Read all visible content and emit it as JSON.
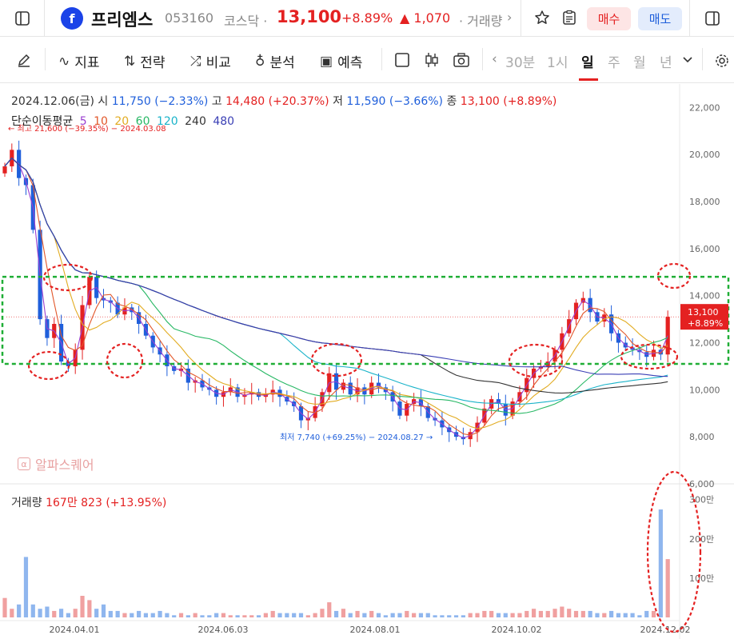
{
  "header": {
    "logo_letter": "f",
    "name": "프리엠스",
    "code": "053160",
    "market": "코스닥 ·",
    "price": "13,100",
    "pct": "+8.89%",
    "change": "▲ 1,070",
    "volume_link": "· 거래량",
    "more": "›",
    "buy": "매수",
    "sell": "매도"
  },
  "toolbar": {
    "indicator": "지표",
    "strategy": "전략",
    "compare": "비교",
    "analysis": "분석",
    "predict": "예측",
    "periods": [
      "30분",
      "1시",
      "일",
      "주",
      "월",
      "년"
    ],
    "active_period": "일"
  },
  "ohlc": {
    "date": "2024.12.06(금)",
    "open_label": "시",
    "open": "11,750 (−2.33%)",
    "high_label": "고",
    "high": "14,480 (+20.37%)",
    "low_label": "저",
    "low": "11,590 (−3.66%)",
    "close_label": "종",
    "close": "13,100 (+8.89%)"
  },
  "ma_legend": {
    "title": "단순이동평균",
    "items": [
      {
        "label": "5",
        "color": "#9b3fd1"
      },
      {
        "label": "10",
        "color": "#e2572a"
      },
      {
        "label": "20",
        "color": "#e2ac22"
      },
      {
        "label": "60",
        "color": "#28b865"
      },
      {
        "label": "120",
        "color": "#19b3c9"
      },
      {
        "label": "240",
        "color": "#333333"
      },
      {
        "label": "480",
        "color": "#3a3fb5"
      }
    ]
  },
  "annotations": {
    "max": "← 최고 21,600 (−39.35%) − 2024.03.08",
    "min": "최저 7,740 (+69.25%) − 2024.08.27 →"
  },
  "watermark": "알파스퀘어",
  "volume_info": {
    "label": "거래량",
    "value": "167만 823 (+13.95%)"
  },
  "price_tag": {
    "price": "13,100",
    "pct": "+8.89%"
  },
  "colors": {
    "up": "#e42121",
    "down": "#1f5fdb",
    "up_vol": "#f0a0a0",
    "down_vol": "#8fb6ee",
    "highlight": "#1fae35"
  },
  "chart_data": {
    "type": "candlestick",
    "y_ticks": [
      "22,000",
      "20,000",
      "18,000",
      "16,000",
      "14,000",
      "12,000",
      "10,000",
      "8,000",
      "6,000"
    ],
    "y_values": [
      22000,
      20000,
      18000,
      16000,
      14000,
      12000,
      10000,
      8000,
      6000
    ],
    "y_range": [
      6000,
      23000
    ],
    "vol_ticks": [
      "300만",
      "200만",
      "100만"
    ],
    "vol_values": [
      3000000,
      2000000,
      1000000
    ],
    "x_ticks": [
      "2024.04.01",
      "2024.06.03",
      "2024.08.01",
      "2024.10.02",
      "2024.12.02"
    ],
    "close_series": [
      19500,
      20200,
      19000,
      18700,
      16800,
      13000,
      12200,
      12800,
      11200,
      11000,
      11700,
      13600,
      14800,
      13900,
      13800,
      13700,
      13200,
      13500,
      13300,
      12800,
      12300,
      11800,
      11500,
      11000,
      10800,
      10900,
      10300,
      10400,
      10100,
      10000,
      9700,
      9900,
      10100,
      9700,
      9800,
      9900,
      9700,
      9800,
      10000,
      9700,
      9500,
      9300,
      8700,
      8800,
      9300,
      9900,
      10700,
      10000,
      10300,
      9800,
      10100,
      9800,
      10300,
      10100,
      9900,
      9500,
      8900,
      9400,
      9600,
      9300,
      8800,
      8700,
      8400,
      8200,
      8000,
      7900,
      8200,
      8600,
      9200,
      9600,
      9400,
      8900,
      9500,
      9900,
      10500,
      10900,
      11000,
      11200,
      11700,
      12400,
      13000,
      13700,
      13900,
      13300,
      12900,
      13200,
      12400,
      12000,
      11800,
      11700,
      11600,
      11400,
      11700,
      11500,
      13100
    ],
    "highlight_zone": [
      11100,
      14800
    ],
    "max": 21600,
    "min": 7740
  }
}
